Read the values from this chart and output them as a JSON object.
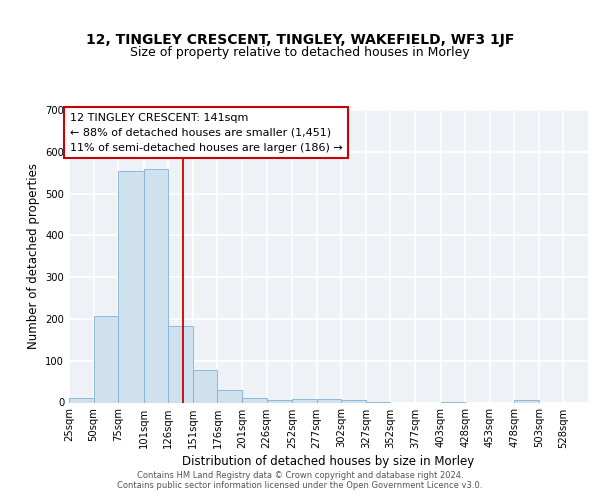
{
  "title1": "12, TINGLEY CRESCENT, TINGLEY, WAKEFIELD, WF3 1JF",
  "title2": "Size of property relative to detached houses in Morley",
  "xlabel": "Distribution of detached houses by size in Morley",
  "ylabel": "Number of detached properties",
  "bin_edges": [
    25,
    50,
    75,
    101,
    126,
    151,
    176,
    201,
    226,
    252,
    277,
    302,
    327,
    352,
    377,
    403,
    428,
    453,
    478,
    503,
    528,
    553
  ],
  "bin_labels": [
    "25sqm",
    "50sqm",
    "75sqm",
    "101sqm",
    "126sqm",
    "151sqm",
    "176sqm",
    "201sqm",
    "226sqm",
    "252sqm",
    "277sqm",
    "302sqm",
    "327sqm",
    "352sqm",
    "377sqm",
    "403sqm",
    "428sqm",
    "453sqm",
    "478sqm",
    "503sqm",
    "528sqm"
  ],
  "values": [
    10,
    207,
    555,
    560,
    183,
    78,
    30,
    10,
    5,
    8,
    8,
    7,
    2,
    0,
    0,
    2,
    0,
    0,
    6,
    0,
    0
  ],
  "bar_color": "#cfe0ef",
  "bar_edge_color": "#7fb3d3",
  "vline_x": 141,
  "vline_color": "#cc0000",
  "annotation_text": "12 TINGLEY CRESCENT: 141sqm\n← 88% of detached houses are smaller (1,451)\n11% of semi-detached houses are larger (186) →",
  "annotation_box_color": "white",
  "annotation_box_edge_color": "#cc0000",
  "ylim": [
    0,
    700
  ],
  "yticks": [
    0,
    100,
    200,
    300,
    400,
    500,
    600,
    700
  ],
  "bg_color": "#eef2f7",
  "grid_color": "white",
  "footer1": "Contains HM Land Registry data © Crown copyright and database right 2024.",
  "footer2": "Contains public sector information licensed under the Open Government Licence v3.0."
}
